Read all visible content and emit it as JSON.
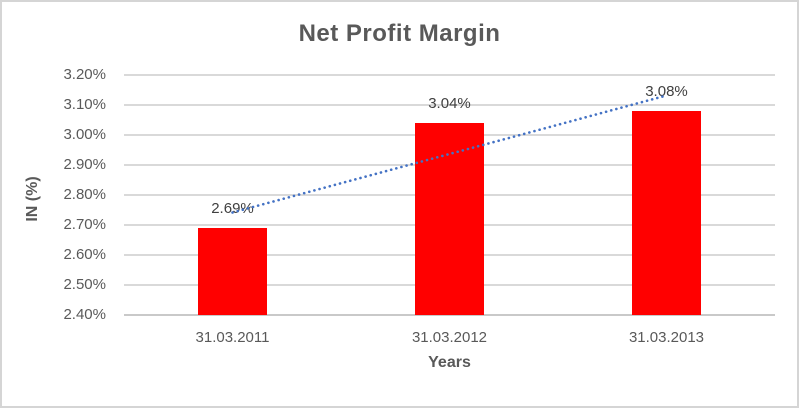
{
  "chart_data": {
    "type": "bar",
    "title": "Net Profit Margin",
    "xlabel": "Years",
    "ylabel": "IN (%)",
    "categories": [
      "31.03.2011",
      "31.03.2012",
      "31.03.2013"
    ],
    "values": [
      2.69,
      3.04,
      3.08
    ],
    "data_labels": [
      "2.69%",
      "3.04%",
      "3.08%"
    ],
    "ylim": [
      2.4,
      3.2
    ],
    "ytick_step": 0.1,
    "ytick_labels": [
      "2.40%",
      "2.50%",
      "2.60%",
      "2.70%",
      "2.80%",
      "2.90%",
      "3.00%",
      "3.10%",
      "3.20%"
    ],
    "grid": true,
    "legend": "none",
    "trendline": {
      "type": "linear",
      "style": "dotted",
      "color": "#4472C4"
    },
    "colors": {
      "bar": "#FF0000",
      "gridline": "#D9D9D9",
      "axis_line": "#C9C9C9",
      "tick_text": "#595959",
      "title_text": "#595959",
      "data_label_text": "#404040",
      "chart_border": "#D5D5D5",
      "background": "#FFFFFF"
    }
  }
}
